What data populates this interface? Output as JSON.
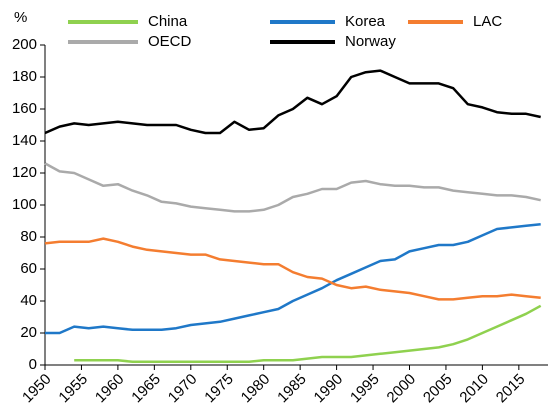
{
  "chart_data": {
    "type": "line",
    "y_label": "%",
    "x": [
      1950,
      1952,
      1954,
      1956,
      1958,
      1960,
      1962,
      1964,
      1966,
      1968,
      1970,
      1972,
      1974,
      1976,
      1978,
      1980,
      1982,
      1984,
      1986,
      1988,
      1990,
      1992,
      1994,
      1996,
      1998,
      2000,
      2002,
      2004,
      2006,
      2008,
      2010,
      2012,
      2014,
      2016,
      2018
    ],
    "series": [
      {
        "name": "China",
        "color": "#8fd14f",
        "values": [
          null,
          null,
          3,
          3,
          3,
          3,
          2,
          2,
          2,
          2,
          2,
          2,
          2,
          2,
          2,
          3,
          3,
          3,
          4,
          5,
          5,
          5,
          6,
          7,
          8,
          9,
          10,
          11,
          13,
          16,
          20,
          24,
          28,
          32,
          37
        ]
      },
      {
        "name": "Korea",
        "color": "#1f78c8",
        "values": [
          20,
          20,
          24,
          23,
          24,
          23,
          22,
          22,
          22,
          23,
          25,
          26,
          27,
          29,
          31,
          33,
          35,
          40,
          44,
          48,
          53,
          57,
          61,
          65,
          66,
          71,
          73,
          75,
          75,
          77,
          81,
          85,
          86,
          87,
          88
        ]
      },
      {
        "name": "LAC",
        "color": "#f47d30",
        "values": [
          76,
          77,
          77,
          77,
          79,
          77,
          74,
          72,
          71,
          70,
          69,
          69,
          66,
          65,
          64,
          63,
          63,
          58,
          55,
          54,
          50,
          48,
          49,
          47,
          46,
          45,
          43,
          41,
          41,
          42,
          43,
          43,
          44,
          43,
          42
        ]
      },
      {
        "name": "OECD",
        "color": "#aaaaaa",
        "values": [
          126,
          121,
          120,
          116,
          112,
          113,
          109,
          106,
          102,
          101,
          99,
          98,
          97,
          96,
          96,
          97,
          100,
          105,
          107,
          110,
          110,
          114,
          115,
          113,
          112,
          112,
          111,
          111,
          109,
          108,
          107,
          106,
          106,
          105,
          103
        ]
      },
      {
        "name": "Norway",
        "color": "#000000",
        "values": [
          145,
          149,
          151,
          150,
          151,
          152,
          151,
          150,
          150,
          150,
          147,
          145,
          145,
          152,
          147,
          148,
          156,
          160,
          167,
          163,
          168,
          180,
          183,
          184,
          180,
          176,
          176,
          176,
          173,
          163,
          161,
          158,
          157,
          157,
          155
        ]
      }
    ],
    "xlim": [
      1950,
      2019
    ],
    "xticks": [
      1950,
      1955,
      1960,
      1965,
      1970,
      1975,
      1980,
      1985,
      1990,
      1995,
      2000,
      2005,
      2010,
      2015
    ],
    "ylim": [
      0,
      200
    ],
    "yticks": [
      0,
      20,
      40,
      60,
      80,
      100,
      120,
      140,
      160,
      180,
      200
    ],
    "grid": false,
    "legend": "top"
  }
}
